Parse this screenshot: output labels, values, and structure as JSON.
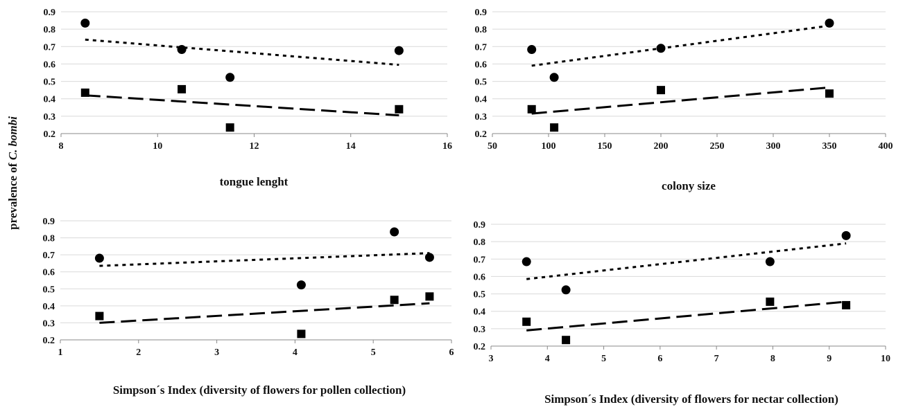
{
  "figure": {
    "shared_ylabel_prefix": "prevalence of ",
    "shared_ylabel_italic": "C. bombi"
  },
  "chart_data": [
    {
      "type": "scatter",
      "xlabel": "tongue lenght",
      "ylabel": "prevalence of C. bombi",
      "xlim": [
        8,
        16
      ],
      "ylim": [
        0.2,
        0.9
      ],
      "xticks": [
        8,
        10,
        12,
        14,
        16
      ],
      "yticks": [
        0.2,
        0.3,
        0.4,
        0.5,
        0.6,
        0.7,
        0.8,
        0.9
      ],
      "grid": true,
      "series": [
        {
          "marker": "circle",
          "x": [
            8.5,
            10.5,
            11.5,
            15.0
          ],
          "y": [
            0.835,
            0.683,
            0.523,
            0.677
          ]
        },
        {
          "marker": "square",
          "x": [
            8.5,
            10.5,
            11.5,
            15.0
          ],
          "y": [
            0.435,
            0.455,
            0.235,
            0.34
          ]
        }
      ],
      "trendlines": [
        {
          "style": "dotted",
          "x": [
            8.5,
            15.0
          ],
          "y": [
            0.74,
            0.595
          ]
        },
        {
          "style": "dashed",
          "x": [
            8.5,
            15.0
          ],
          "y": [
            0.42,
            0.305
          ]
        }
      ]
    },
    {
      "type": "scatter",
      "xlabel": "colony size",
      "ylabel": "",
      "xlim": [
        50,
        400
      ],
      "ylim": [
        0.2,
        0.9
      ],
      "xticks": [
        50,
        100,
        150,
        200,
        250,
        300,
        350,
        400
      ],
      "yticks": [
        0.2,
        0.3,
        0.4,
        0.5,
        0.6,
        0.7,
        0.8,
        0.9
      ],
      "grid": true,
      "series": [
        {
          "marker": "circle",
          "x": [
            85,
            105,
            200,
            350
          ],
          "y": [
            0.683,
            0.523,
            0.69,
            0.835
          ]
        },
        {
          "marker": "square",
          "x": [
            85,
            105,
            200,
            350
          ],
          "y": [
            0.34,
            0.235,
            0.45,
            0.43
          ]
        }
      ],
      "trendlines": [
        {
          "style": "dotted",
          "x": [
            85,
            350
          ],
          "y": [
            0.59,
            0.82
          ]
        },
        {
          "style": "dashed",
          "x": [
            85,
            350
          ],
          "y": [
            0.315,
            0.465
          ]
        }
      ]
    },
    {
      "type": "scatter",
      "xlabel": "Simpson´s Index (diversity of flowers for pollen collection)",
      "ylabel": "",
      "xlim": [
        1,
        6
      ],
      "ylim": [
        0.2,
        0.9
      ],
      "xticks": [
        1,
        2,
        3,
        4,
        5,
        6
      ],
      "yticks": [
        0.2,
        0.3,
        0.4,
        0.5,
        0.6,
        0.7,
        0.8,
        0.9
      ],
      "grid": true,
      "series": [
        {
          "marker": "circle",
          "x": [
            1.5,
            4.08,
            5.27,
            5.72
          ],
          "y": [
            0.68,
            0.523,
            0.835,
            0.685
          ]
        },
        {
          "marker": "square",
          "x": [
            1.5,
            4.08,
            5.27,
            5.72
          ],
          "y": [
            0.34,
            0.235,
            0.435,
            0.455
          ]
        }
      ],
      "trendlines": [
        {
          "style": "dotted",
          "x": [
            1.5,
            5.72
          ],
          "y": [
            0.635,
            0.71
          ]
        },
        {
          "style": "dashed",
          "x": [
            1.5,
            5.72
          ],
          "y": [
            0.3,
            0.415
          ]
        }
      ]
    },
    {
      "type": "scatter",
      "xlabel": "Simpson´s Index (diversity of flowers for nectar collection)",
      "ylabel": "",
      "xlim": [
        3,
        10
      ],
      "ylim": [
        0.2,
        0.9
      ],
      "xticks": [
        3,
        4,
        5,
        6,
        7,
        8,
        9,
        10
      ],
      "yticks": [
        0.2,
        0.3,
        0.4,
        0.5,
        0.6,
        0.7,
        0.8,
        0.9
      ],
      "grid": true,
      "series": [
        {
          "marker": "circle",
          "x": [
            3.63,
            4.33,
            7.95,
            9.3
          ],
          "y": [
            0.685,
            0.523,
            0.685,
            0.835
          ]
        },
        {
          "marker": "square",
          "x": [
            3.63,
            4.33,
            7.95,
            9.3
          ],
          "y": [
            0.34,
            0.235,
            0.455,
            0.435
          ]
        }
      ],
      "trendlines": [
        {
          "style": "dotted",
          "x": [
            3.63,
            9.3
          ],
          "y": [
            0.585,
            0.79
          ]
        },
        {
          "style": "dashed",
          "x": [
            3.63,
            9.3
          ],
          "y": [
            0.29,
            0.455
          ]
        }
      ]
    }
  ]
}
